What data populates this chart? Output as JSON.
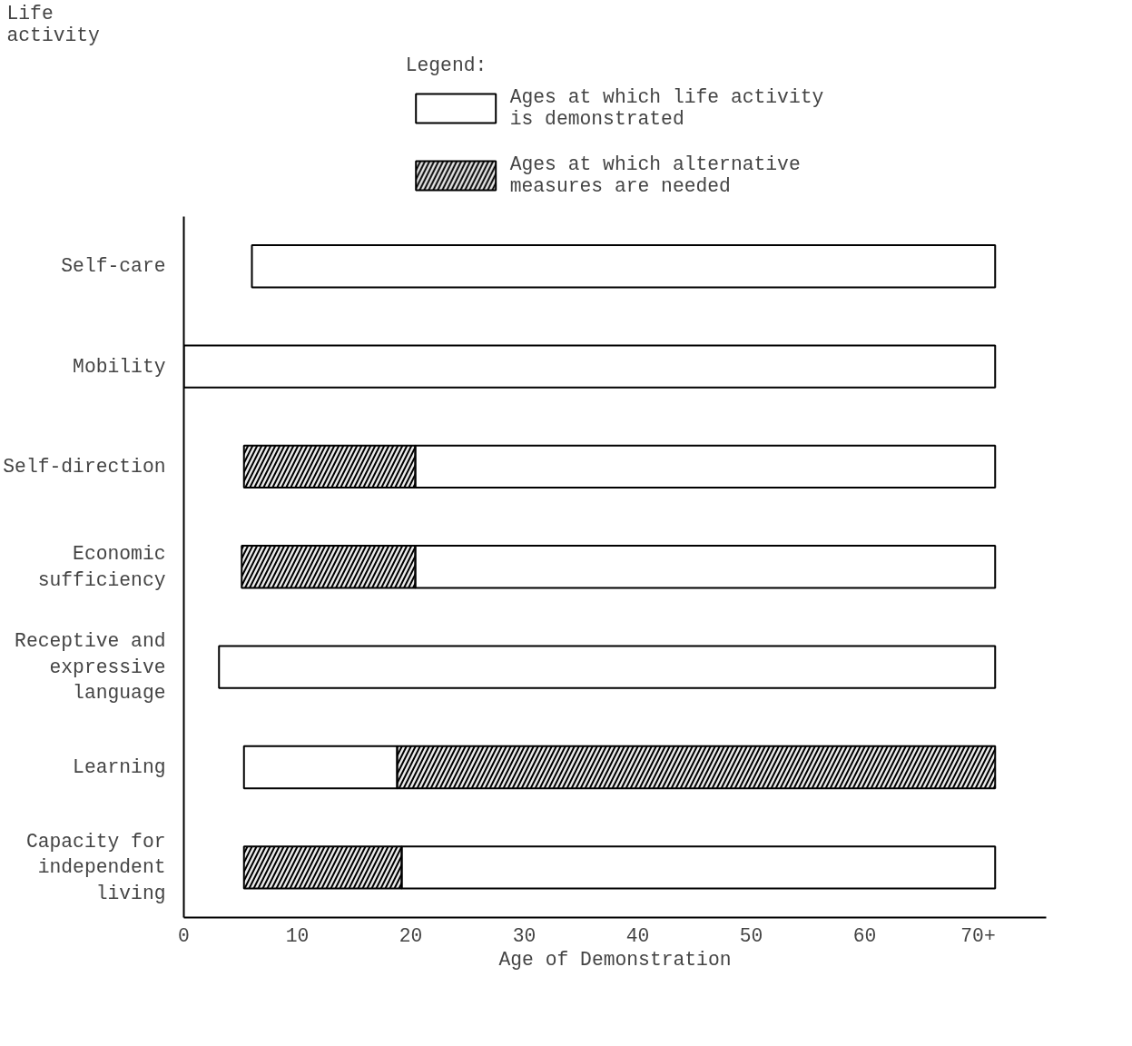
{
  "chart_data": {
    "type": "bar",
    "orientation": "horizontal",
    "xlabel": "Age of Demonstration",
    "annotations": [
      "Life activity"
    ],
    "legend_title": "Legend:",
    "legend": "top",
    "categories": [
      "Self-care",
      "Mobility",
      "Self-direction",
      "Economic sufficiency",
      "Receptive and expressive language",
      "Learning",
      "Capacity for independent living"
    ],
    "series": [
      {
        "name": "Ages at which life activity is demonstrated",
        "color": "#ffffff",
        "base": [
          6.0,
          0,
          20.4,
          20.4,
          3.1,
          5.3,
          19.2
        ],
        "values": [
          65.5,
          71.5,
          51.1,
          51.1,
          68.4,
          13.5,
          52.3
        ]
      },
      {
        "name": "Ages at which alternative measures are needed",
        "color": "#000000",
        "base": [
          null,
          null,
          5.3,
          5.1,
          null,
          18.8,
          5.3
        ],
        "values": [
          null,
          null,
          15.1,
          15.3,
          null,
          52.7,
          13.9
        ]
      }
    ],
    "xlim": [
      0,
      76
    ],
    "xticks": [
      0,
      10,
      20,
      30,
      40,
      50,
      60,
      {
        "value": 70,
        "label": "70+"
      }
    ],
    "grid": false
  }
}
